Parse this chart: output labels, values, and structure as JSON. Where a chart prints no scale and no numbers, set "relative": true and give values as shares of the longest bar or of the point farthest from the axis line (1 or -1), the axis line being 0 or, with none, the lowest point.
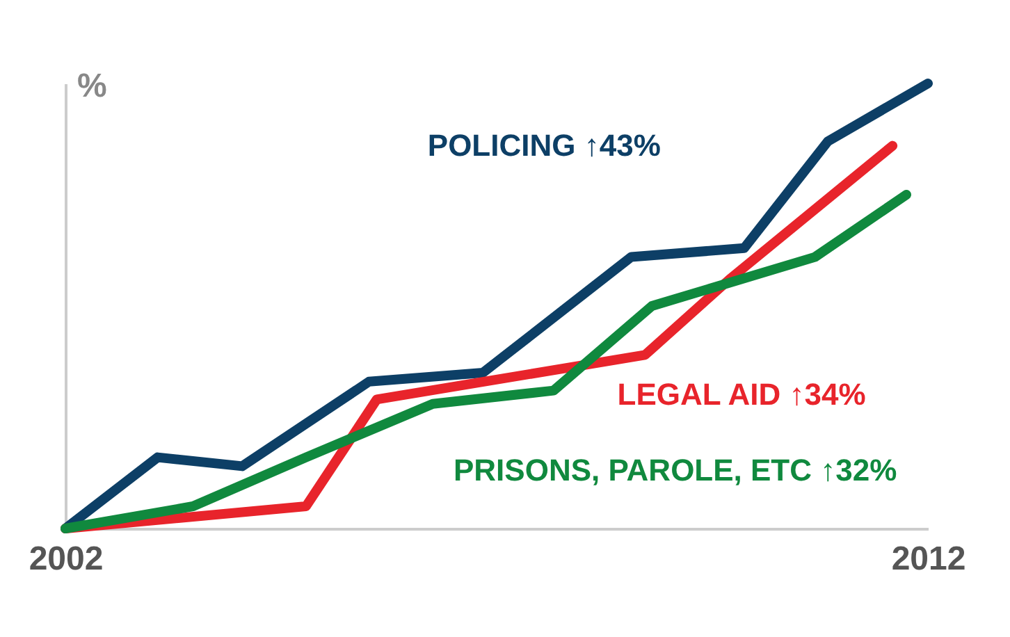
{
  "chart_data": {
    "type": "line",
    "ylabel": "%",
    "relative": true,
    "xlim": [
      2002,
      2012
    ],
    "xticks": [
      2002,
      2012
    ],
    "line_style": "solid",
    "marker": "none",
    "series": [
      {
        "name": "POLICING ↑43%",
        "color": "#0d3f66",
        "x": [
          2002,
          2003.07,
          2004.05,
          2005.52,
          2006.84,
          2008.56,
          2009.87,
          2010.84,
          2012
        ],
        "values": [
          0,
          0.16,
          0.14,
          0.33,
          0.35,
          0.61,
          0.63,
          0.87,
          1
        ]
      },
      {
        "name": "LEGAL AID ↑34%",
        "color": "#e8242b",
        "x": [
          2002,
          2004.79,
          2005.61,
          2008.72,
          2009.7,
          2011.59
        ],
        "values": [
          0,
          0.05,
          0.29,
          0.39,
          0.56,
          0.86
        ]
      },
      {
        "name": "PRISONS, PAROLE, ETC ↑32%",
        "color": "#10893e",
        "x": [
          2002,
          2003.48,
          2004.79,
          2006.26,
          2007.66,
          2008.8,
          2010.69,
          2011.75
        ],
        "values": [
          0,
          0.05,
          0.16,
          0.28,
          0.31,
          0.5,
          0.61,
          0.75
        ]
      }
    ]
  }
}
